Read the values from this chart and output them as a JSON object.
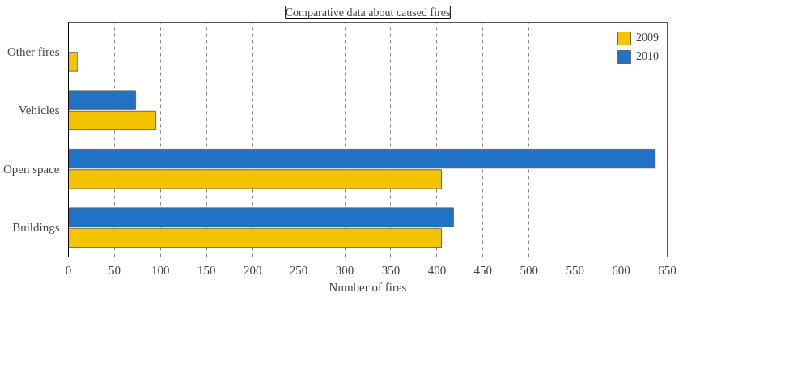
{
  "chart_data": {
    "type": "bar",
    "orientation": "horizontal",
    "title": "Comparative data about caused fires",
    "xlabel": "Number of fires",
    "categories": [
      "Other fires",
      "Vehicles",
      "Open space",
      "Buildings"
    ],
    "series": [
      {
        "name": "2009",
        "color": "#f5c400",
        "values": [
          10,
          95,
          405,
          405
        ]
      },
      {
        "name": "2010",
        "color": "#1f72c4",
        "values": [
          null,
          73,
          637,
          418
        ]
      }
    ],
    "xlim": [
      0,
      650
    ],
    "xticks": [
      0,
      50,
      100,
      150,
      200,
      250,
      300,
      350,
      400,
      450,
      500,
      550,
      600,
      650
    ],
    "grid": "x",
    "legend": "top right"
  }
}
